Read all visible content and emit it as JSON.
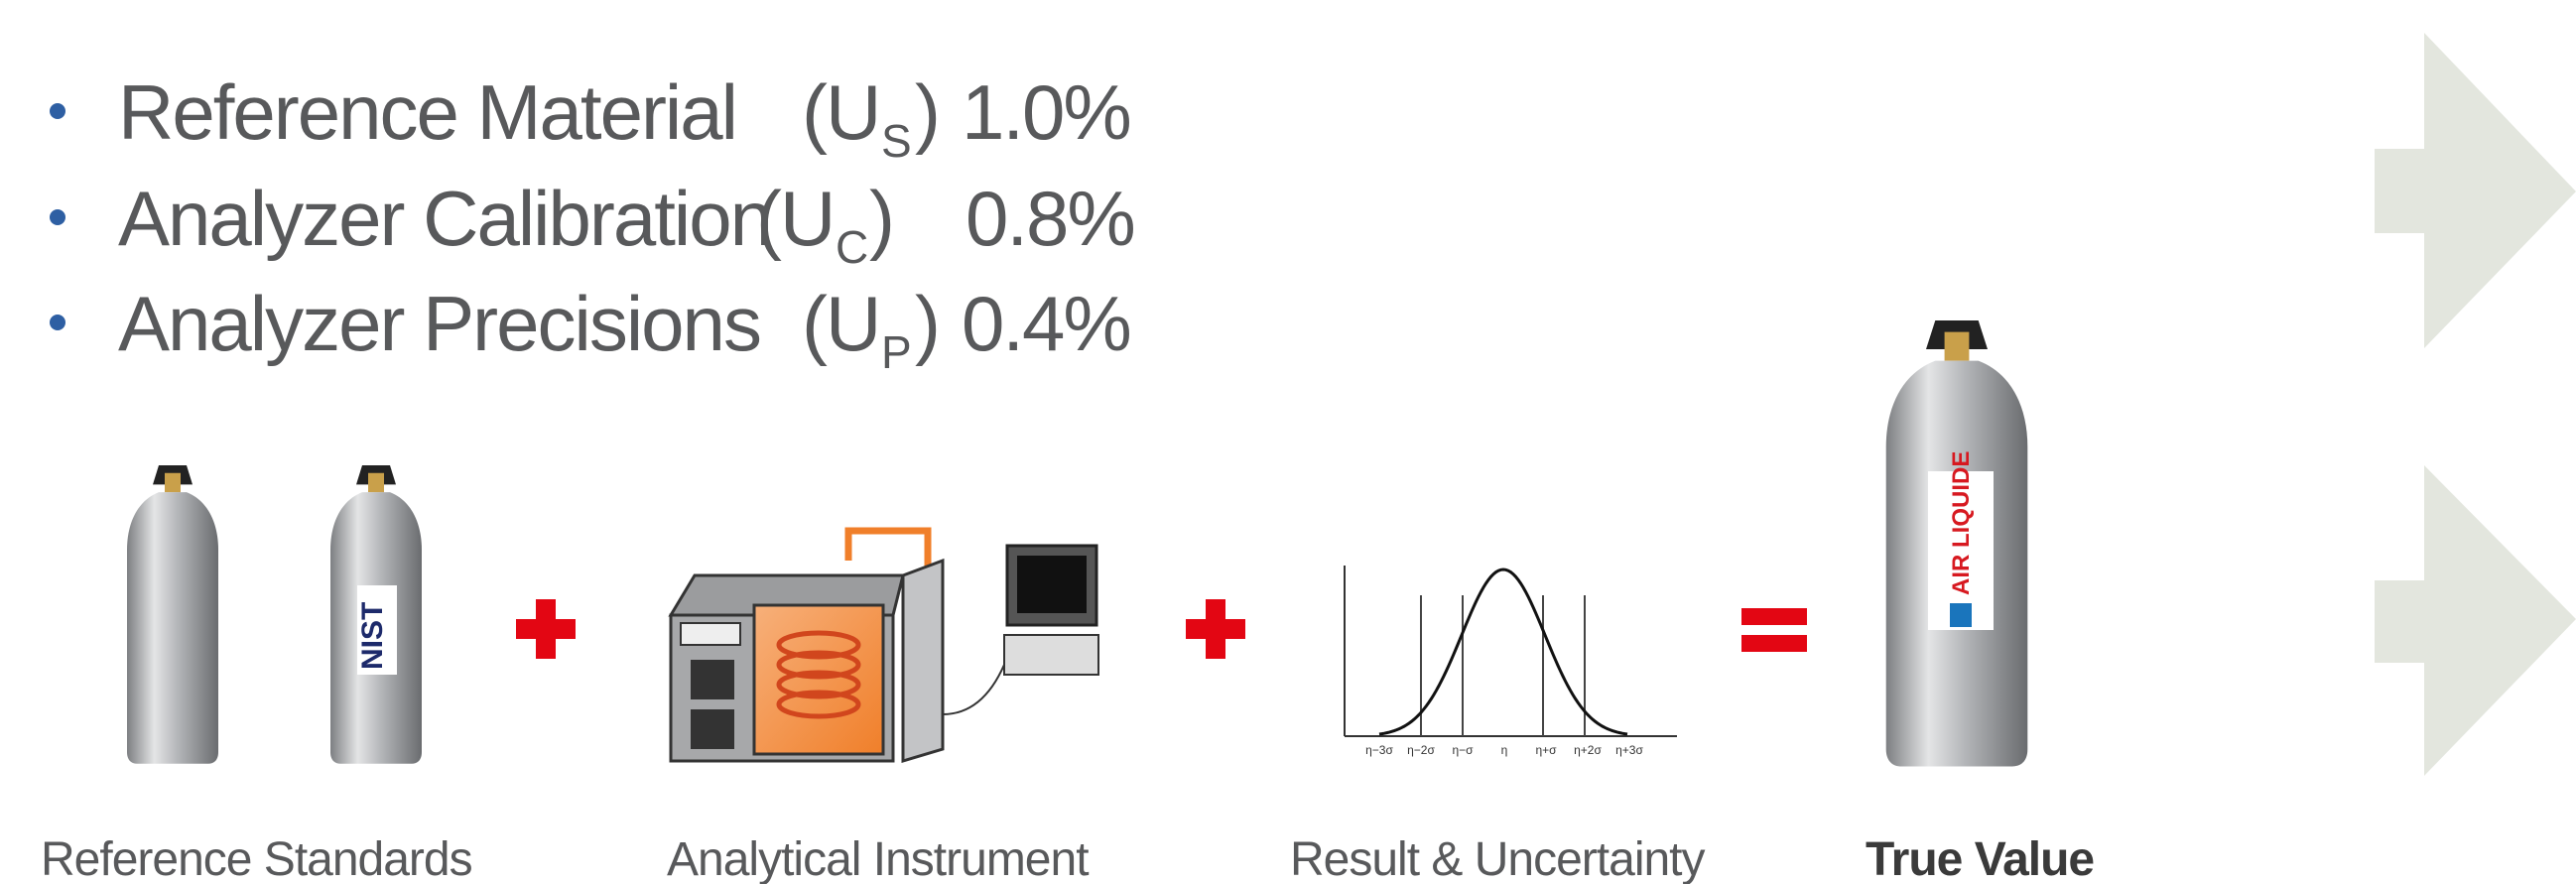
{
  "bullets": [
    {
      "label": "Reference Material",
      "open": "(U",
      "sub": "S",
      "close": ")",
      "value": "1.0%"
    },
    {
      "label": "Analyzer Calibration",
      "open": "(U",
      "sub": "C",
      "close": ")",
      "value": "0.8%"
    },
    {
      "label": "Analyzer Precisions",
      "open": "(U",
      "sub": "P",
      "close": ")",
      "value": "0.4%"
    }
  ],
  "captions": [
    "Reference Standards",
    "Analytical Instrument",
    "Result & Uncertainty",
    "True Value"
  ],
  "cylinder_labels": {
    "standard": "NIST",
    "product": "AIR LIQUIDE"
  },
  "curve_ticks": [
    "η−3σ",
    "η−2σ",
    "η−σ",
    "η",
    "η+σ",
    "η+2σ",
    "η+3σ"
  ]
}
